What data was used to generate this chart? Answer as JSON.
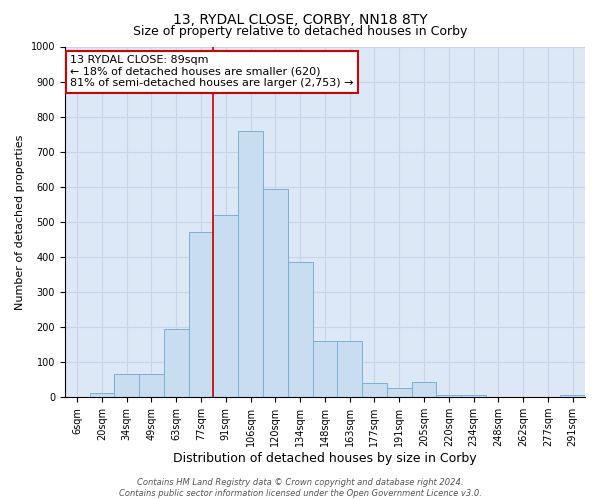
{
  "title": "13, RYDAL CLOSE, CORBY, NN18 8TY",
  "subtitle": "Size of property relative to detached houses in Corby",
  "xlabel": "Distribution of detached houses by size in Corby",
  "ylabel": "Number of detached properties",
  "bin_labels": [
    "6sqm",
    "20sqm",
    "34sqm",
    "49sqm",
    "63sqm",
    "77sqm",
    "91sqm",
    "106sqm",
    "120sqm",
    "134sqm",
    "148sqm",
    "163sqm",
    "177sqm",
    "191sqm",
    "205sqm",
    "220sqm",
    "234sqm",
    "248sqm",
    "262sqm",
    "277sqm",
    "291sqm"
  ],
  "bar_values": [
    0,
    13,
    65,
    65,
    195,
    470,
    520,
    760,
    595,
    385,
    160,
    160,
    40,
    25,
    43,
    7,
    5,
    0,
    0,
    0,
    5
  ],
  "bar_color": "#c9ddf0",
  "bar_edge_color": "#7bafd4",
  "vline_index": 6.5,
  "annotation_text": "13 RYDAL CLOSE: 89sqm\n← 18% of detached houses are smaller (620)\n81% of semi-detached houses are larger (2,753) →",
  "annotation_box_facecolor": "#ffffff",
  "annotation_box_edgecolor": "#cc0000",
  "ylim": [
    0,
    1000
  ],
  "yticks": [
    0,
    100,
    200,
    300,
    400,
    500,
    600,
    700,
    800,
    900,
    1000
  ],
  "grid_color": "#c8d4e8",
  "background_color": "#dde8f6",
  "footer_text": "Contains HM Land Registry data © Crown copyright and database right 2024.\nContains public sector information licensed under the Open Government Licence v3.0.",
  "title_fontsize": 10,
  "subtitle_fontsize": 9,
  "ylabel_fontsize": 8,
  "xlabel_fontsize": 9,
  "tick_fontsize": 7,
  "annot_fontsize": 8,
  "footer_fontsize": 6
}
